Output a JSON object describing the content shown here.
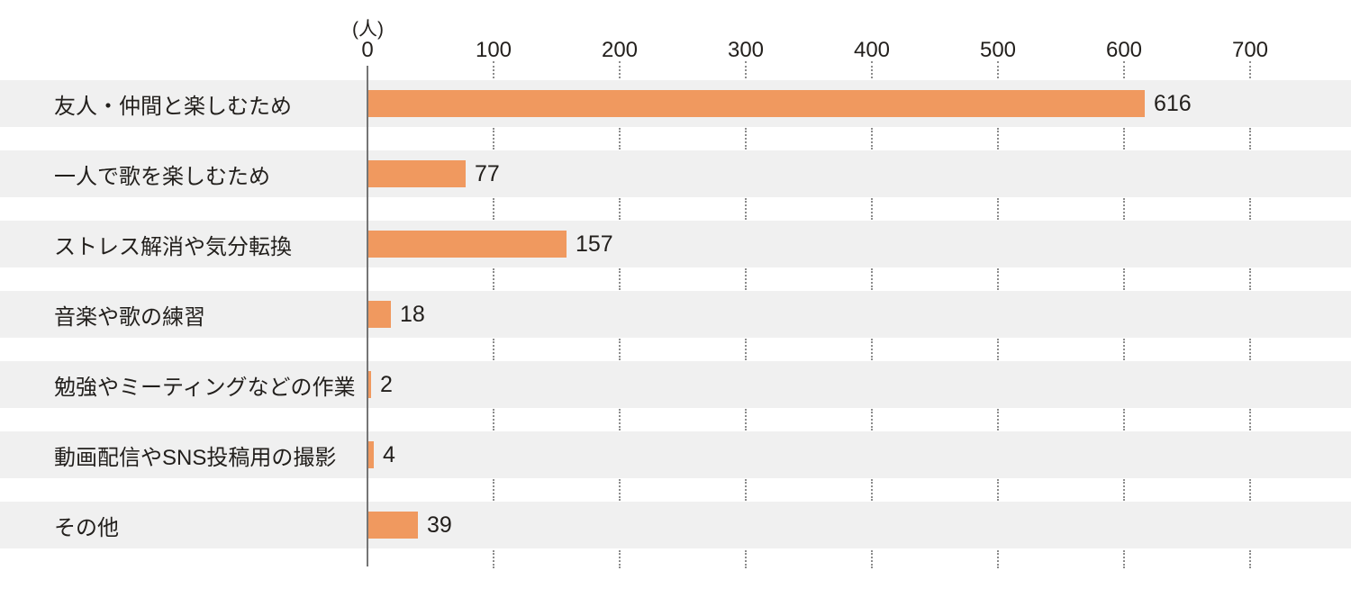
{
  "chart_data": {
    "type": "bar",
    "orientation": "horizontal",
    "title": "",
    "unit_label": "(人)",
    "categories": [
      "友人・仲間と楽しむため",
      "一人で歌を楽しむため",
      "ストレス解消や気分転換",
      "音楽や歌の練習",
      "勉強やミーティングなどの作業",
      "動画配信やSNS投稿用の撮影",
      "その他"
    ],
    "values": [
      616,
      77,
      157,
      18,
      2,
      4,
      39
    ],
    "x_ticks": [
      0,
      100,
      200,
      300,
      400,
      500,
      600,
      700
    ],
    "xlim": [
      0,
      780
    ],
    "xlabel": "",
    "ylabel": "",
    "legend": "none",
    "grid": "dotted vertical lines shown only in white gaps between row bands",
    "bar_color": "#F0995F",
    "row_band_color": "#F0F0F0",
    "axis_line_color": "#757575",
    "gridline_color": "#8C8C8C",
    "text_color": "#221F1C"
  }
}
